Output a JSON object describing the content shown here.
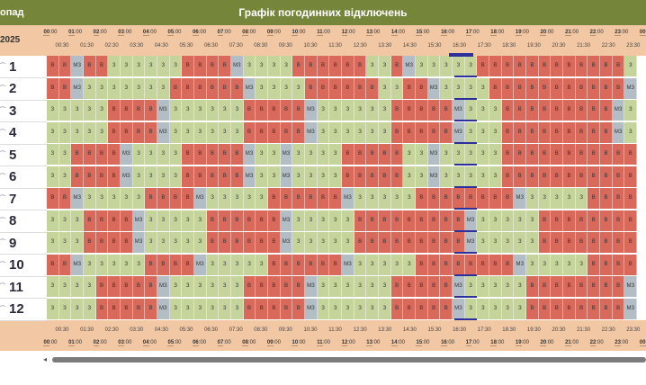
{
  "header": {
    "left_label": "опад",
    "title": "Графік погодинних відключень",
    "date": "2025"
  },
  "hours": [
    "00",
    "01",
    "02",
    "03",
    "04",
    "05",
    "06",
    "07",
    "08",
    "09",
    "10",
    "11",
    "12",
    "13",
    "14",
    "15",
    "16",
    "17",
    "18",
    "19",
    "20",
    "21",
    "22",
    "23",
    "00"
  ],
  "minute_labels": [
    "00:30",
    "01:30",
    "02:30",
    "03:30",
    "04:30",
    "05:30",
    "06:30",
    "07:30",
    "08:30",
    "09:30",
    "10:30",
    "11:30",
    "12:30",
    "13:30",
    "14:30",
    "15:30",
    "16:30",
    "17:30",
    "18:30",
    "19:30",
    "20:30",
    "21:30",
    "22:30",
    "23:30"
  ],
  "now_marker_label": "16:30",
  "rows": [
    {
      "label": "1",
      "cells": "BBMBB333333BBBBM3333BBBBBB33BM33333BBBBBBBBBBBB3333333B"
    },
    {
      "label": "2",
      "cells": "BBM3333333BBBBBBM3333BBBBBB33BBM3333BBBBBBBBBBBM333333BBB"
    },
    {
      "label": "3",
      "cells": "33333BBBBM333333BBBBBM333333BBBBBM333BBBBBBBBBM33333BBBBB"
    },
    {
      "label": "4",
      "cells": "33333BBBBM333333BBBBBM333333BBBBBM333BBBBBBBBBM33333BBBBB"
    },
    {
      "label": "5",
      "cells": "33BBBBM3333BBBBBM33M3333BBBBB33M33333BBBBBBBBBBBBBBBBBBM"
    },
    {
      "label": "6",
      "cells": "33BBBBM3333BBBBBM33M3333BBBBB33M33333BBBBBBBBBBBBBBBBBBM"
    },
    {
      "label": "7",
      "cells": "BBM33333BBBBM33333BBBBBBM33333BBBBBBBBM33333BBBBBBBBBBBB"
    },
    {
      "label": "8",
      "cells": "333BBBBM33333BBBBBBM33333BBBBBBBBBM33333BBBBBBBBBM333BBBB"
    },
    {
      "label": "9",
      "cells": "333BBBBM33333BBBBBBM33333BBBBBBBBBM33333BBBBBBBBBM333BBBB"
    },
    {
      "label": "10",
      "cells": "BBM33333BBBBM33333BBBBBBM33333BBBBBBBBM33333BBBBBBBBBBBB"
    },
    {
      "label": "11",
      "cells": "3333BBBBBM333333BBBBBM333333BBBBBM33333BBBBBBBBM33333BBBB"
    },
    {
      "label": "12",
      "cells": "3333BBBBBM333333BBBBBM333333BBBBBM33333BBBBBBBBM33333BBBB"
    }
  ],
  "status_labels": {
    "3": "З",
    "B": "В",
    "M": "МЗ"
  },
  "status_colors": {
    "3": "#c5d49a",
    "B": "#d8695b",
    "M": "#b3bdc6"
  }
}
